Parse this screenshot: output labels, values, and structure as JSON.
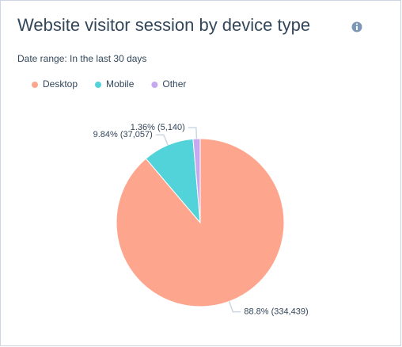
{
  "chart_data": {
    "type": "pie",
    "title": "Website visitor session by device type",
    "subtitle": "Date range: In the last 30 days",
    "series": [
      {
        "name": "Desktop",
        "color": "#fea58e",
        "values": [
          334439
        ],
        "value_labels": [
          "88.8% (334,439)"
        ]
      },
      {
        "name": "Mobile",
        "color": "#51d3d9",
        "values": [
          37057
        ],
        "value_labels": [
          "9.84% (37,057)"
        ]
      },
      {
        "name": "Other",
        "color": "#c5a8f0",
        "values": [
          5140
        ],
        "value_labels": [
          "1.36% (5,140)"
        ]
      }
    ],
    "legend": "top-left"
  }
}
